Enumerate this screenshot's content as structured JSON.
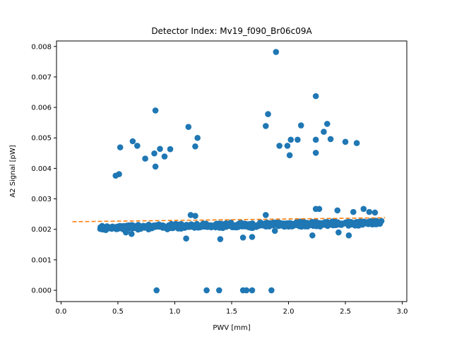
{
  "chart_data": {
    "type": "scatter",
    "title": "Detector Index: Mv19_f090_Br06c09A",
    "xlabel": "PWV [mm]",
    "ylabel": "A2 Signal [pW]",
    "xlim": [
      -0.04,
      3.04
    ],
    "ylim": [
      -0.00037,
      0.00818
    ],
    "xticks": [
      0.0,
      0.5,
      1.0,
      1.5,
      2.0,
      2.5,
      3.0
    ],
    "xtick_labels": [
      "0.0",
      "0.5",
      "1.0",
      "1.5",
      "2.0",
      "2.5",
      "3.0"
    ],
    "yticks": [
      0.0,
      0.001,
      0.002,
      0.003,
      0.004,
      0.005,
      0.006,
      0.007,
      0.008
    ],
    "ytick_labels": [
      "0.000",
      "0.001",
      "0.002",
      "0.003",
      "0.004",
      "0.005",
      "0.006",
      "0.007",
      "0.008"
    ],
    "grid": false,
    "point_color": "#1f77b4",
    "fit_color": "#ff7f0e",
    "fit_line": {
      "x": [
        0.1,
        2.85
      ],
      "y": [
        0.00225,
        0.00238
      ],
      "style": "dashed"
    },
    "outliers_high": [
      [
        0.48,
        0.00376
      ],
      [
        0.51,
        0.00381
      ],
      [
        0.52,
        0.00469
      ],
      [
        0.63,
        0.00489
      ],
      [
        0.67,
        0.00474
      ],
      [
        0.74,
        0.00432
      ],
      [
        0.82,
        0.00449
      ],
      [
        0.83,
        0.00406
      ],
      [
        0.83,
        0.0059
      ],
      [
        0.87,
        0.00464
      ],
      [
        0.91,
        0.00439
      ],
      [
        0.96,
        0.00463
      ],
      [
        1.12,
        0.00536
      ],
      [
        1.18,
        0.00472
      ],
      [
        1.2,
        0.005
      ],
      [
        1.8,
        0.00539
      ],
      [
        1.82,
        0.00578
      ],
      [
        1.89,
        0.00782
      ],
      [
        1.92,
        0.00474
      ],
      [
        1.99,
        0.00474
      ],
      [
        2.01,
        0.00443
      ],
      [
        2.02,
        0.00494
      ],
      [
        2.08,
        0.00494
      ],
      [
        2.11,
        0.00541
      ],
      [
        2.24,
        0.00637
      ],
      [
        2.24,
        0.00451
      ],
      [
        2.24,
        0.00494
      ],
      [
        2.31,
        0.0052
      ],
      [
        2.34,
        0.00546
      ],
      [
        2.37,
        0.00496
      ],
      [
        2.5,
        0.00487
      ],
      [
        2.6,
        0.00483
      ]
    ],
    "outliers_zero": [
      [
        0.84,
        0.0
      ],
      [
        1.28,
        0.0
      ],
      [
        1.39,
        0.0
      ],
      [
        1.6,
        0.0
      ],
      [
        1.63,
        0.0
      ],
      [
        1.68,
        0.0
      ],
      [
        1.85,
        0.0
      ]
    ],
    "band_low": [
      [
        1.1,
        0.0017
      ],
      [
        1.4,
        0.00168
      ],
      [
        1.6,
        0.00173
      ],
      [
        1.68,
        0.00175
      ],
      [
        1.88,
        0.00195
      ],
      [
        2.21,
        0.0018
      ],
      [
        2.44,
        0.0019
      ],
      [
        2.53,
        0.0018
      ],
      [
        0.57,
        0.0019
      ],
      [
        0.62,
        0.00185
      ]
    ],
    "band_high": [
      [
        1.14,
        0.00247
      ],
      [
        1.18,
        0.00244
      ],
      [
        1.8,
        0.00247
      ],
      [
        2.24,
        0.00267
      ],
      [
        2.27,
        0.00267
      ],
      [
        2.43,
        0.00262
      ],
      [
        2.57,
        0.00257
      ],
      [
        2.66,
        0.00267
      ],
      [
        2.71,
        0.00257
      ],
      [
        2.76,
        0.00255
      ]
    ],
    "band_trend": {
      "x_range": [
        0.34,
        2.83
      ],
      "y_start": 0.00205,
      "y_end": 0.00222,
      "spread": 0.00011,
      "n": 600
    }
  }
}
